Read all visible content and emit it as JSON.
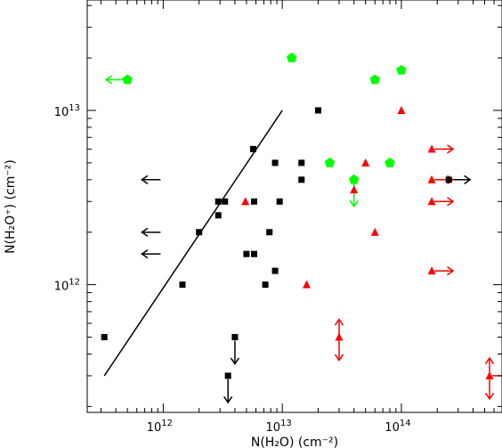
{
  "chart_data": {
    "type": "scatter",
    "xlabel": "N(H₂O) (cm⁻²)",
    "ylabel": "N(H₂O⁺) (cm⁻²)",
    "x_scale": "log",
    "y_scale": "log",
    "xlim": [
      230000000000.0,
      700000000000000.0
    ],
    "ylim": [
      185000000000.0,
      43000000000000.0
    ],
    "x_ticks": [
      {
        "value": 1000000000000.0,
        "label": "10",
        "exp": "12"
      },
      {
        "value": 10000000000000.0,
        "label": "10",
        "exp": "13"
      },
      {
        "value": 100000000000000.0,
        "label": "10",
        "exp": "14"
      }
    ],
    "y_ticks": [
      {
        "value": 1000000000000.0,
        "label": "10",
        "exp": "12"
      },
      {
        "value": 10000000000000.0,
        "label": "10",
        "exp": "13"
      }
    ],
    "grid": false,
    "colors": {
      "black": "#000000",
      "red": "#ff0000",
      "green": "#00ff00"
    },
    "series": [
      {
        "marker": "square",
        "color": "#000000",
        "points": [
          {
            "x": 320000000000.0,
            "y": 500000000000.0
          },
          {
            "x": 1450000000000.0,
            "y": 1000000000000.0
          },
          {
            "x": 2000000000000.0,
            "y": 2000000000000.0
          },
          {
            "x": 2900000000000.0,
            "y": 3000000000000.0
          },
          {
            "x": 2900000000000.0,
            "y": 2500000000000.0
          },
          {
            "x": 3300000000000.0,
            "y": 3000000000000.0
          },
          {
            "x": 4000000000000.0,
            "y": 500000000000.0
          },
          {
            "x": 3500000000000.0,
            "y": 300000000000.0
          },
          {
            "x": 5000000000000.0,
            "y": 1500000000000.0
          },
          {
            "x": 5700000000000.0,
            "y": 6000000000000.0
          },
          {
            "x": 5800000000000.0,
            "y": 3000000000000.0
          },
          {
            "x": 5800000000000.0,
            "y": 1500000000000.0
          },
          {
            "x": 7200000000000.0,
            "y": 1000000000000.0
          },
          {
            "x": 7800000000000.0,
            "y": 2000000000000.0
          },
          {
            "x": 8700000000000.0,
            "y": 5000000000000.0
          },
          {
            "x": 8700000000000.0,
            "y": 1200000000000.0
          },
          {
            "x": 9500000000000.0,
            "y": 3000000000000.0
          },
          {
            "x": 14500000000000.0,
            "y": 5000000000000.0
          },
          {
            "x": 14500000000000.0,
            "y": 4000000000000.0
          },
          {
            "x": 20000000000000.0,
            "y": 10000000000000.0
          },
          {
            "x": 250000000000000.0,
            "y": 4000000000000.0
          }
        ]
      },
      {
        "marker": "triangle",
        "color": "#ff0000",
        "points": [
          {
            "x": 4900000000000.0,
            "y": 3000000000000.0
          },
          {
            "x": 16000000000000.0,
            "y": 1000000000000.0
          },
          {
            "x": 30000000000000.0,
            "y": 500000000000.0
          },
          {
            "x": 40000000000000.0,
            "y": 3500000000000.0
          },
          {
            "x": 50000000000000.0,
            "y": 5000000000000.0
          },
          {
            "x": 60000000000000.0,
            "y": 2000000000000.0
          },
          {
            "x": 100000000000000.0,
            "y": 10000000000000.0
          },
          {
            "x": 180000000000000.0,
            "y": 6000000000000.0
          },
          {
            "x": 180000000000000.0,
            "y": 4000000000000.0
          },
          {
            "x": 180000000000000.0,
            "y": 3000000000000.0
          },
          {
            "x": 180000000000000.0,
            "y": 1200000000000.0
          },
          {
            "x": 550000000000000.0,
            "y": 300000000000.0
          }
        ]
      },
      {
        "marker": "pentagon",
        "color": "#00ff00",
        "points": [
          {
            "x": 500000000000.0,
            "y": 15000000000000.0
          },
          {
            "x": 12000000000000.0,
            "y": 20000000000000.0
          },
          {
            "x": 25000000000000.0,
            "y": 5000000000000.0
          },
          {
            "x": 40000000000000.0,
            "y": 4000000000000.0
          },
          {
            "x": 60000000000000.0,
            "y": 15000000000000.0
          },
          {
            "x": 80000000000000.0,
            "y": 5000000000000.0
          },
          {
            "x": 100000000000000.0,
            "y": 17000000000000.0
          }
        ]
      }
    ],
    "arrows": [
      {
        "x": 1000000000000.0,
        "y": 4000000000000.0,
        "dir": "left",
        "color": "#000000"
      },
      {
        "x": 1000000000000.0,
        "y": 2000000000000.0,
        "dir": "left",
        "color": "#000000"
      },
      {
        "x": 1000000000000.0,
        "y": 1500000000000.0,
        "dir": "left",
        "color": "#000000"
      },
      {
        "x": 4000000000000.0,
        "y": 500000000000.0,
        "dir": "down",
        "color": "#000000"
      },
      {
        "x": 3500000000000.0,
        "y": 300000000000.0,
        "dir": "down",
        "color": "#000000"
      },
      {
        "x": 250000000000000.0,
        "y": 4000000000000.0,
        "dir": "right",
        "color": "#000000"
      },
      {
        "x": 500000000000.0,
        "y": 15000000000000.0,
        "dir": "left",
        "color": "#00ff00"
      },
      {
        "x": 40000000000000.0,
        "y": 4000000000000.0,
        "dir": "down",
        "color": "#00ff00"
      },
      {
        "x": 180000000000000.0,
        "y": 6000000000000.0,
        "dir": "right",
        "color": "#ff0000"
      },
      {
        "x": 180000000000000.0,
        "y": 4000000000000.0,
        "dir": "right",
        "color": "#ff0000"
      },
      {
        "x": 180000000000000.0,
        "y": 3000000000000.0,
        "dir": "right",
        "color": "#ff0000"
      },
      {
        "x": 180000000000000.0,
        "y": 1200000000000.0,
        "dir": "right",
        "color": "#ff0000"
      },
      {
        "x": 550000000000000.0,
        "y": 300000000000.0,
        "dir": "right",
        "color": "#ff0000"
      },
      {
        "x": 30000000000000.0,
        "y": 500000000000.0,
        "dir": "updown",
        "color": "#ff0000"
      },
      {
        "x": 550000000000000.0,
        "y": 300000000000.0,
        "dir": "updown",
        "color": "#ff0000"
      }
    ],
    "fit_line": {
      "x": [
        320000000000.0,
        10000000000000.0
      ],
      "y": [
        300000000000.0,
        10000000000000.0
      ],
      "color": "#000000"
    }
  }
}
